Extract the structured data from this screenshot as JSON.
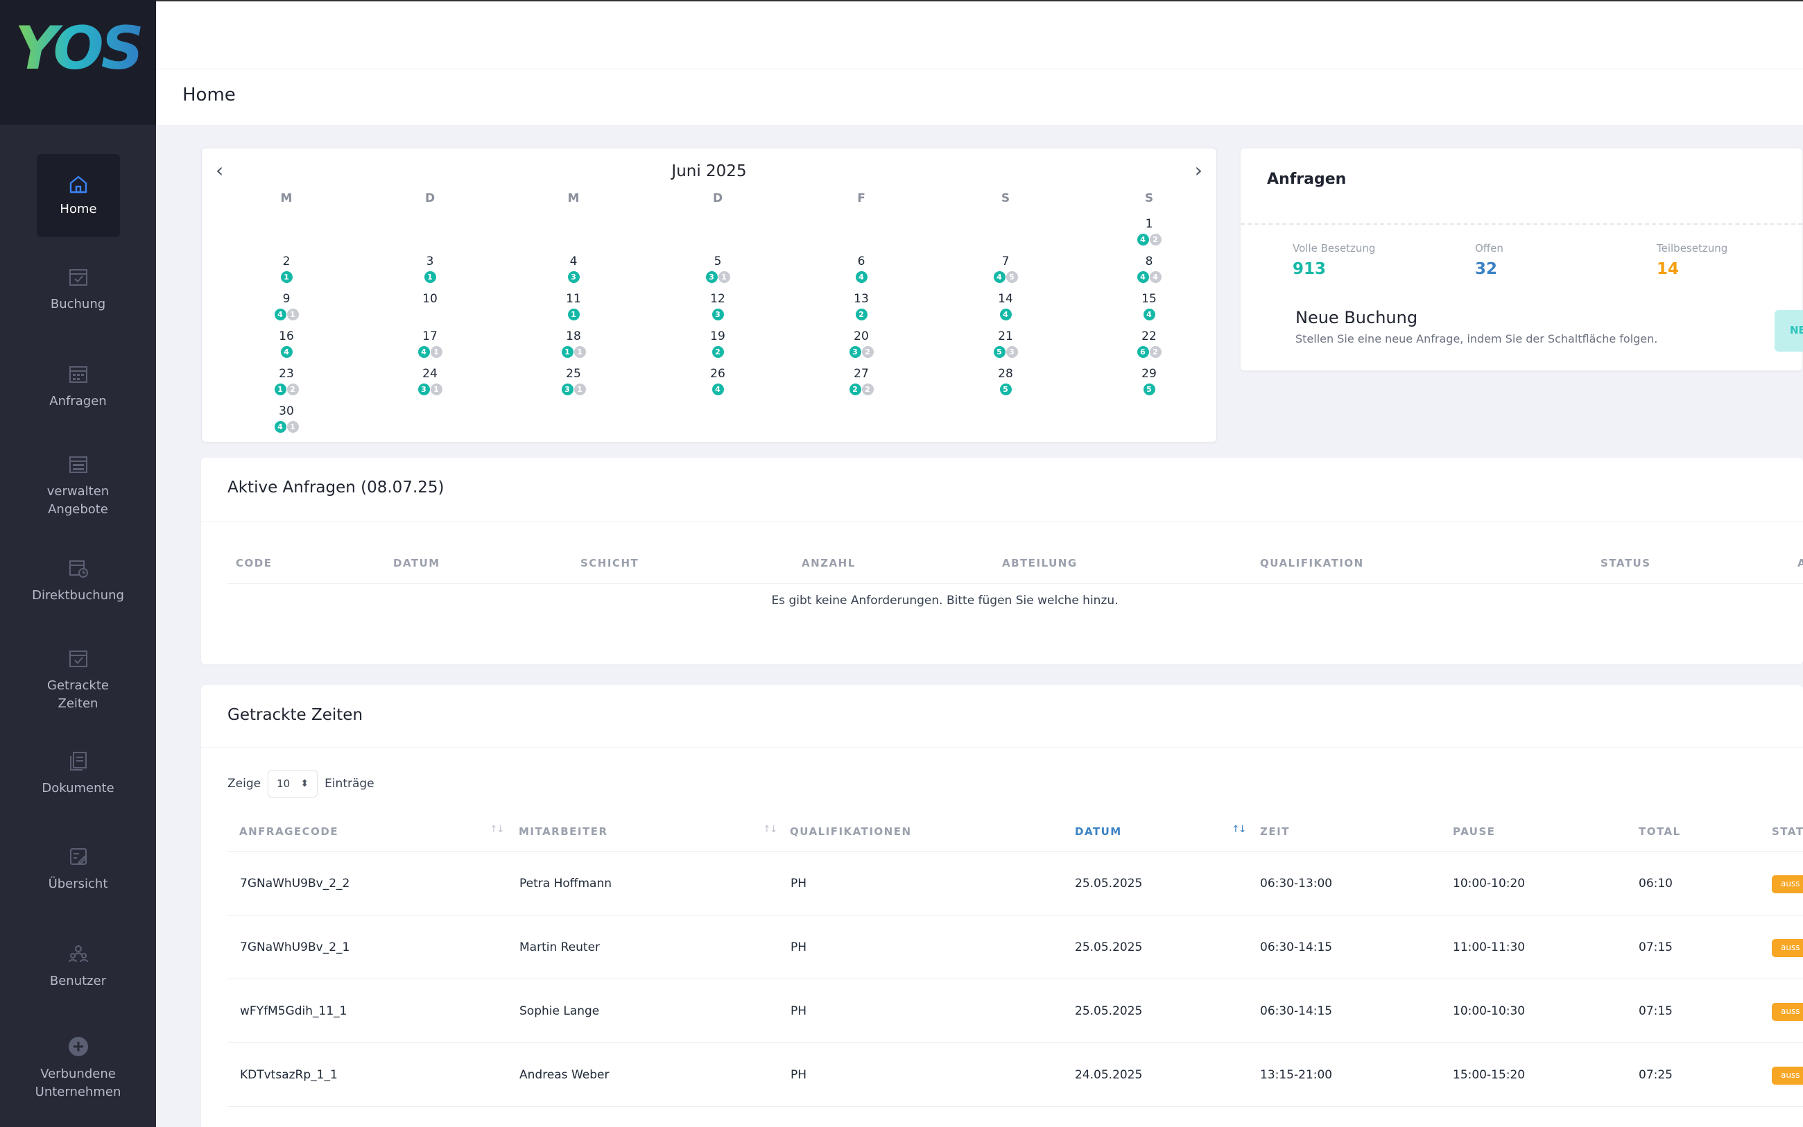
{
  "brand": {
    "logo": "YOS"
  },
  "sidebar": {
    "items": [
      {
        "label": "Home"
      },
      {
        "label": "Buchung"
      },
      {
        "label": "Anfragen"
      },
      {
        "label": "verwalten Angebote"
      },
      {
        "label": "Direktbuchung"
      },
      {
        "label": "Getrackte Zeiten"
      },
      {
        "label": "Dokumente"
      },
      {
        "label": "Übersicht"
      },
      {
        "label": "Benutzer"
      },
      {
        "label": "Verbundene Unternehmen"
      }
    ]
  },
  "header": {
    "page_title": "Home"
  },
  "calendar": {
    "title": "Juni 2025",
    "weekdays": [
      "M",
      "D",
      "M",
      "D",
      "F",
      "S",
      "S"
    ],
    "days": [
      {
        "d": "1",
        "t": "4",
        "g": "2"
      },
      {
        "d": "2",
        "t": "1",
        "g": ""
      },
      {
        "d": "3",
        "t": "1",
        "g": ""
      },
      {
        "d": "4",
        "t": "3",
        "g": ""
      },
      {
        "d": "5",
        "t": "3",
        "g": "1"
      },
      {
        "d": "6",
        "t": "4",
        "g": ""
      },
      {
        "d": "7",
        "t": "4",
        "g": "5"
      },
      {
        "d": "8",
        "t": "4",
        "g": "4"
      },
      {
        "d": "9",
        "t": "4",
        "g": "1"
      },
      {
        "d": "10",
        "t": "",
        "g": ""
      },
      {
        "d": "11",
        "t": "1",
        "g": ""
      },
      {
        "d": "12",
        "t": "3",
        "g": ""
      },
      {
        "d": "13",
        "t": "2",
        "g": ""
      },
      {
        "d": "14",
        "t": "4",
        "g": ""
      },
      {
        "d": "15",
        "t": "4",
        "g": ""
      },
      {
        "d": "16",
        "t": "4",
        "g": ""
      },
      {
        "d": "17",
        "t": "4",
        "g": "1"
      },
      {
        "d": "18",
        "t": "1",
        "g": "1"
      },
      {
        "d": "19",
        "t": "2",
        "g": ""
      },
      {
        "d": "20",
        "t": "3",
        "g": "2"
      },
      {
        "d": "21",
        "t": "5",
        "g": "3"
      },
      {
        "d": "22",
        "t": "6",
        "g": "2"
      },
      {
        "d": "23",
        "t": "1",
        "g": "2"
      },
      {
        "d": "24",
        "t": "3",
        "g": "1"
      },
      {
        "d": "25",
        "t": "3",
        "g": "1"
      },
      {
        "d": "26",
        "t": "4",
        "g": ""
      },
      {
        "d": "27",
        "t": "2",
        "g": "2"
      },
      {
        "d": "28",
        "t": "5",
        "g": ""
      },
      {
        "d": "29",
        "t": "5",
        "g": ""
      },
      {
        "d": "30",
        "t": "4",
        "g": "1"
      }
    ]
  },
  "anfragen": {
    "title": "Anfragen",
    "stats": [
      {
        "label": "Volle Besetzung",
        "value": "913",
        "color": "#14b8a6"
      },
      {
        "label": "Offen",
        "value": "32",
        "color": "#3b82c4"
      },
      {
        "label": "Teilbesetzung",
        "value": "14",
        "color": "#f59e0b"
      }
    ],
    "neue_buchung_title": "Neue Buchung",
    "neue_buchung_sub": "Stellen Sie eine neue Anfrage, indem Sie der Schaltfläche folgen.",
    "button_label": "NE"
  },
  "aktive": {
    "title": "Aktive Anfragen (08.07.25)",
    "columns": [
      "CODE",
      "DATUM",
      "SCHICHT",
      "ANZAHL",
      "ABTEILUNG",
      "QUALIFIKATION",
      "STATUS",
      "A"
    ],
    "empty": "Es gibt keine Anforderungen. Bitte fügen Sie welche hinzu."
  },
  "getrackte": {
    "title": "Getrackte Zeiten",
    "show_label": "Zeige",
    "page_size": "10",
    "entries_label": "Einträge",
    "columns": [
      "ANFRAGECODE",
      "MITARBEITER",
      "QUALIFIKATIONEN",
      "DATUM",
      "ZEIT",
      "PAUSE",
      "TOTAL",
      "STATU"
    ],
    "rows": [
      {
        "code": "7GNaWhU9Bv_2_2",
        "name": "Petra Hoffmann",
        "qual": "PH",
        "date": "25.05.2025",
        "time": "06:30-13:00",
        "pause": "10:00-10:20",
        "total": "06:10",
        "status": "auss"
      },
      {
        "code": "7GNaWhU9Bv_2_1",
        "name": "Martin Reuter",
        "qual": "PH",
        "date": "25.05.2025",
        "time": "06:30-14:15",
        "pause": "11:00-11:30",
        "total": "07:15",
        "status": "auss"
      },
      {
        "code": "wFYfM5Gdih_11_1",
        "name": "Sophie Lange",
        "qual": "PH",
        "date": "25.05.2025",
        "time": "06:30-14:15",
        "pause": "10:00-10:30",
        "total": "07:15",
        "status": "auss"
      },
      {
        "code": "KDTvtsazRp_1_1",
        "name": "Andreas Weber",
        "qual": "PH",
        "date": "24.05.2025",
        "time": "13:15-21:00",
        "pause": "15:00-15:20",
        "total": "07:25",
        "status": "auss"
      }
    ]
  },
  "colors": {
    "accent": "#14b8a6",
    "sidebar": "#272a36",
    "active_sort": "#3b82c4",
    "badge": "#f6a623"
  }
}
